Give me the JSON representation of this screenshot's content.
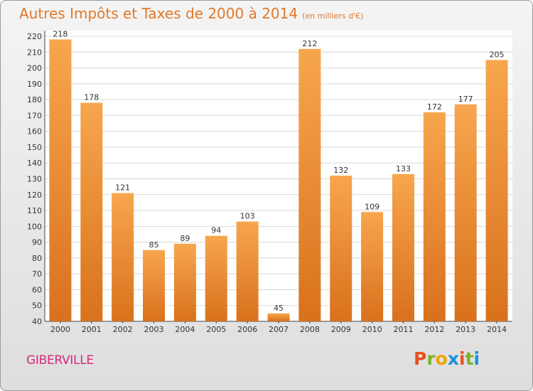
{
  "title": "Autres Impôts et Taxes de 2000 à 2014",
  "subtitle": "(en milliers d'€)",
  "city": "GIBERVILLE",
  "logo": {
    "letters": [
      "P",
      "r",
      "o",
      "x",
      "i",
      "t",
      "i"
    ],
    "colors": [
      "#e8501e",
      "#7bb32e",
      "#f0a500",
      "#1e8fd8",
      "#e8501e",
      "#7bb32e",
      "#1e8fd8"
    ]
  },
  "colors": {
    "bar_light": "#f7a64e",
    "bar_dark": "#d9711c",
    "title": "#e0792a",
    "city": "#d9287a"
  },
  "chart_data": {
    "type": "bar",
    "categories": [
      "2000",
      "2001",
      "2002",
      "2003",
      "2004",
      "2005",
      "2006",
      "2007",
      "2008",
      "2009",
      "2010",
      "2011",
      "2012",
      "2013",
      "2014"
    ],
    "values": [
      218,
      178,
      121,
      85,
      89,
      94,
      103,
      45,
      212,
      132,
      109,
      133,
      172,
      177,
      205
    ],
    "ylim": [
      40,
      220
    ],
    "yticks": [
      40,
      50,
      60,
      70,
      80,
      90,
      100,
      110,
      120,
      130,
      140,
      150,
      160,
      170,
      180,
      190,
      200,
      210,
      220
    ],
    "grid": true
  }
}
